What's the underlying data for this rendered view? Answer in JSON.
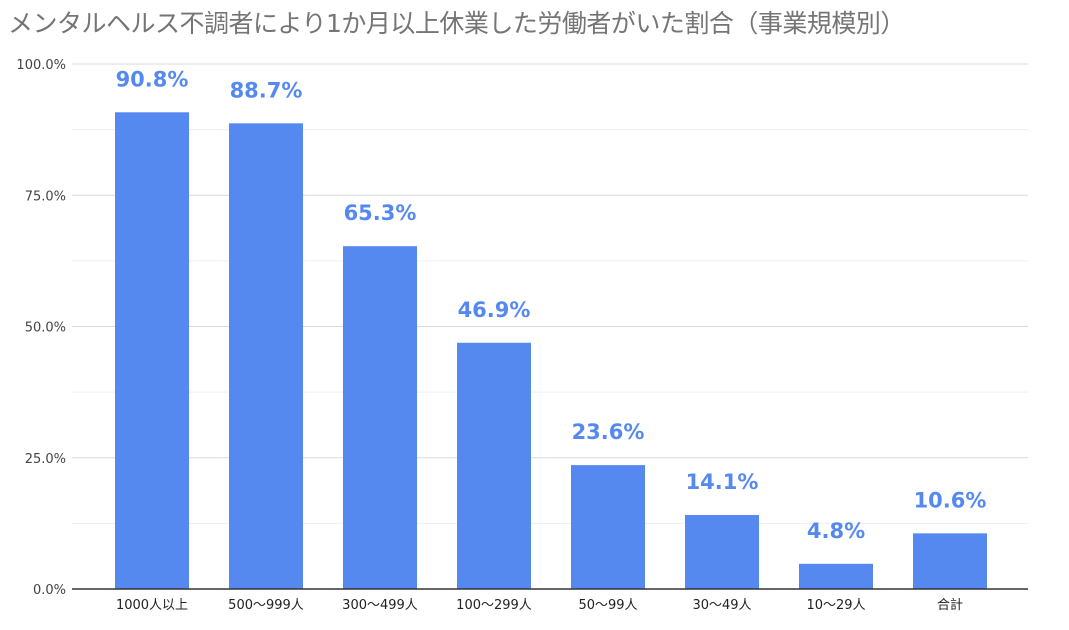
{
  "chart_data": {
    "type": "bar",
    "title": "メンタルヘルス不調者により1か月以上休業した労働者がいた割合（事業規模別）",
    "categories": [
      "1000人以上",
      "500〜999人",
      "300〜499人",
      "100〜299人",
      "50〜99人",
      "30〜49人",
      "10〜29人",
      "合計"
    ],
    "values": [
      90.8,
      88.7,
      65.3,
      46.9,
      23.6,
      14.1,
      4.8,
      10.6
    ],
    "data_labels": [
      "90.8%",
      "88.7%",
      "65.3%",
      "46.9%",
      "23.6%",
      "14.1%",
      "4.8%",
      "10.6%"
    ],
    "yticks": [
      "0.0%",
      "25.0%",
      "50.0%",
      "75.0%",
      "100.0%"
    ],
    "ylim": [
      0,
      100
    ],
    "xlabel": "",
    "ylabel": "",
    "grid": true,
    "legend": "none",
    "bar_color": "#5589f0",
    "label_color": "#5589f0"
  }
}
